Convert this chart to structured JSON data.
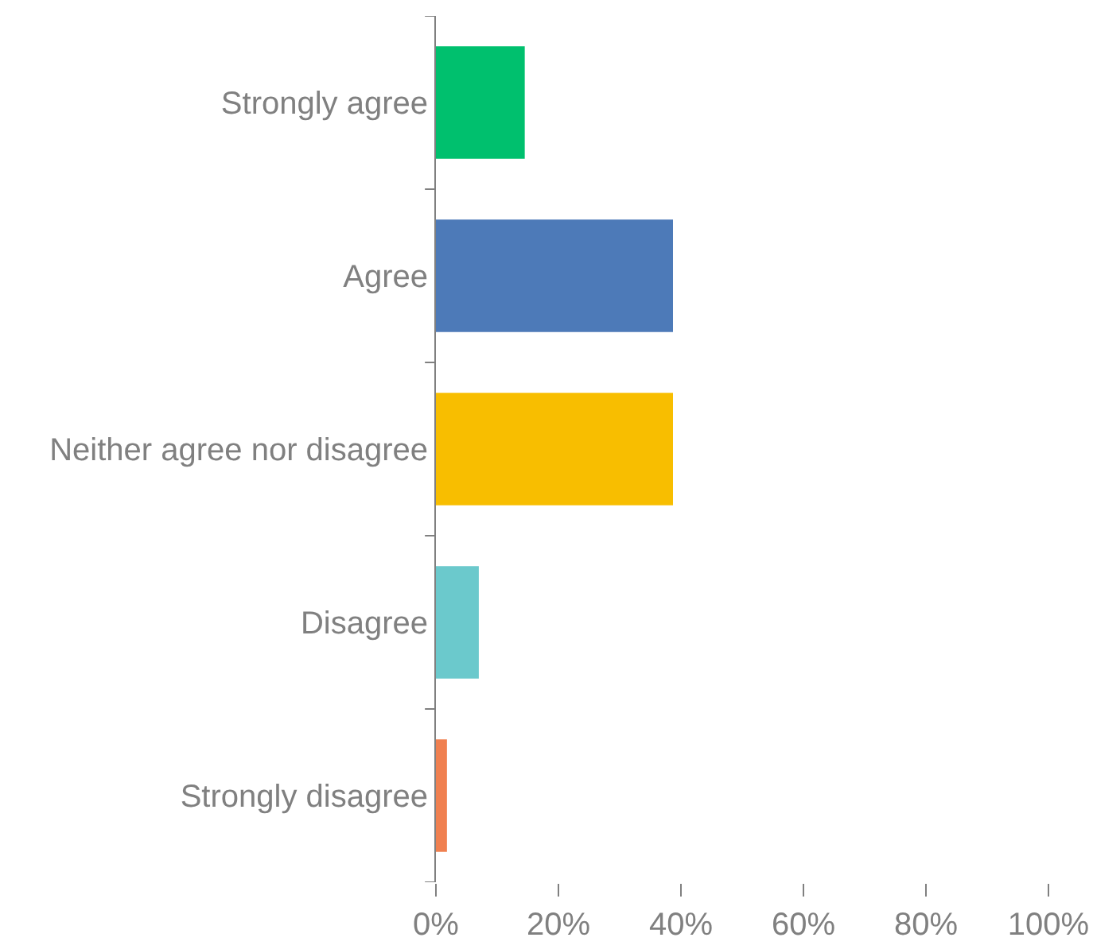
{
  "chart_data": {
    "type": "bar",
    "orientation": "horizontal",
    "categories": [
      "Strongly agree",
      "Agree",
      "Neither agree nor disagree",
      "Disagree",
      "Strongly disagree"
    ],
    "values": [
      14.5,
      38.7,
      38.7,
      7,
      1.8
    ],
    "colors": [
      "#00c06e",
      "#4d7ab8",
      "#f8be00",
      "#6bc9cc",
      "#f08050"
    ],
    "xlim": [
      0,
      100
    ],
    "xticks": [
      {
        "value": 0,
        "label": "0%"
      },
      {
        "value": 20,
        "label": "20%"
      },
      {
        "value": 40,
        "label": "40%"
      },
      {
        "value": 60,
        "label": "60%"
      },
      {
        "value": 80,
        "label": "80%"
      },
      {
        "value": 100,
        "label": "100%"
      }
    ],
    "grid": false
  }
}
